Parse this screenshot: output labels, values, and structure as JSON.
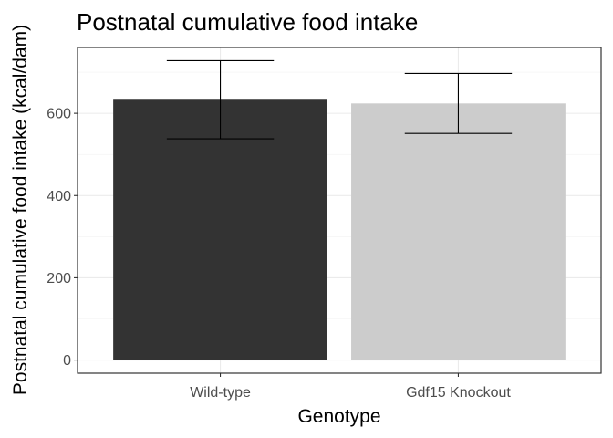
{
  "chart_data": {
    "type": "bar",
    "title": "Postnatal cumulative food intake",
    "xlabel": "Genotype",
    "ylabel": "Postnatal cumulative food intake (kcal/dam)",
    "categories": [
      "Wild-type",
      "Gdf15 Knockout"
    ],
    "values": [
      633,
      624
    ],
    "error_low": [
      538,
      551
    ],
    "error_high": [
      728,
      697
    ],
    "bar_colors": [
      "#333333",
      "#cccccc"
    ],
    "ylim": [
      -32,
      760
    ],
    "yticks": [
      0,
      200,
      400,
      600
    ],
    "ytick_labels": [
      "0",
      "200",
      "400",
      "600"
    ],
    "grid": true,
    "legend": "none"
  }
}
